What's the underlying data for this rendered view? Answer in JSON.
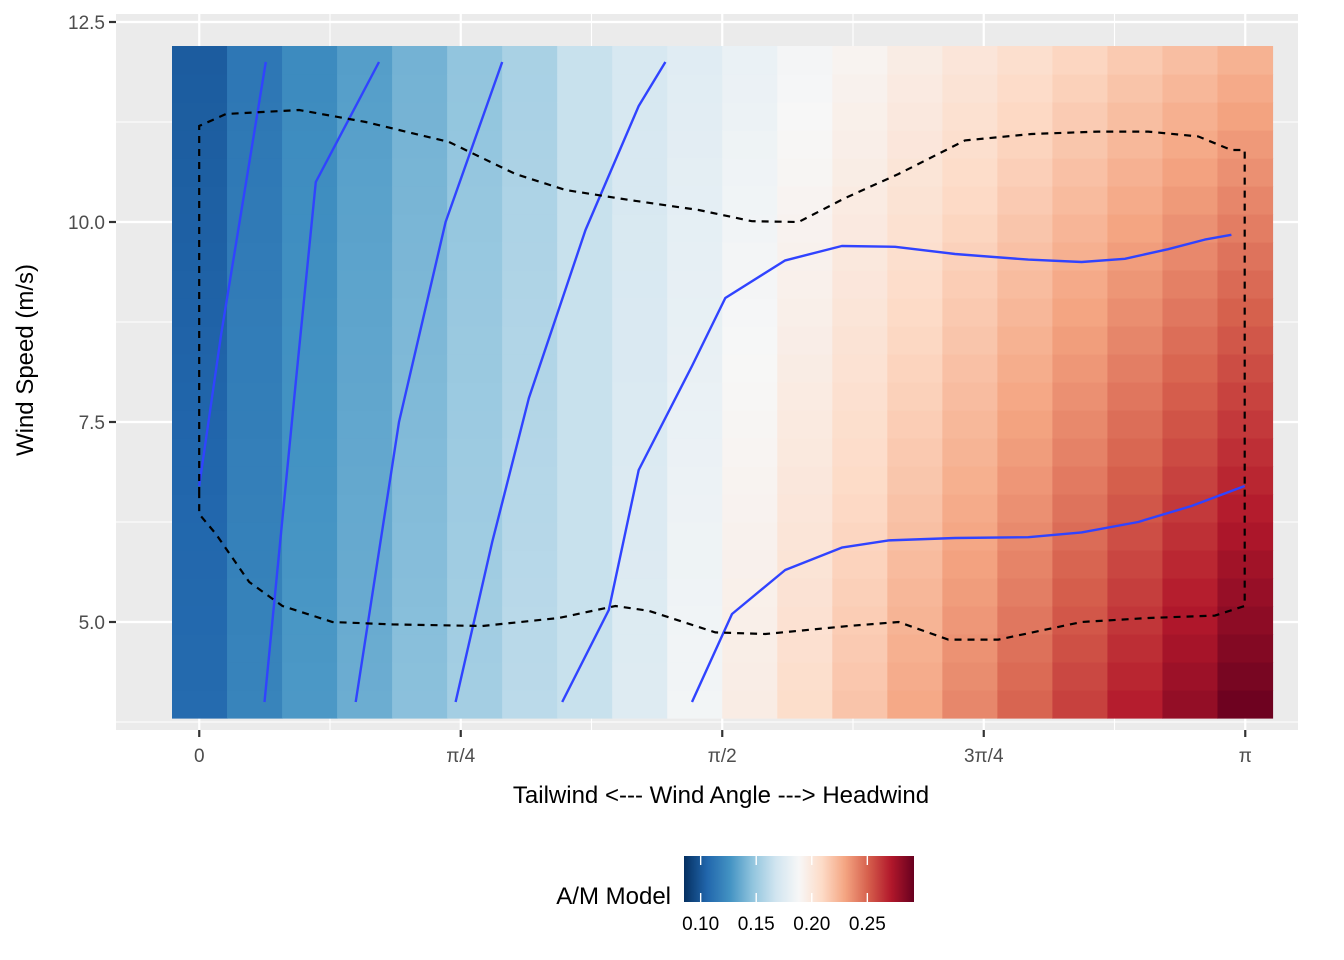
{
  "chart_data": {
    "type": "heatmap",
    "xlabel": "Tailwind  <---  Wind Angle  --->  Headwind",
    "ylabel": "Wind Speed (m/s)",
    "x_ticks": [
      {
        "value": 0,
        "label": "0"
      },
      {
        "value": 0.7854,
        "label": "π/4"
      },
      {
        "value": 1.5708,
        "label": "π/2"
      },
      {
        "value": 2.3562,
        "label": "3π/4"
      },
      {
        "value": 3.1416,
        "label": "π"
      }
    ],
    "y_ticks": [
      {
        "value": 5.0,
        "label": "5.0"
      },
      {
        "value": 7.5,
        "label": "7.5"
      },
      {
        "value": 10.0,
        "label": "10.0"
      },
      {
        "value": 12.5,
        "label": "12.5"
      }
    ],
    "xlim": [
      -0.25,
      3.3
    ],
    "ylim": [
      3.65,
      12.6
    ],
    "grid": true,
    "heatmap": {
      "x_range": [
        -0.0818,
        3.2234
      ],
      "y_range": [
        3.8,
        12.2
      ],
      "columns": 20,
      "rows": 24,
      "value_range_in_columns": [
        0.105,
        0.245
      ],
      "description": "fill value increases with wind angle and, for angles above about pi/2, increases as wind speed decreases"
    },
    "contours": [
      {
        "level": "low-1",
        "points": [
          [
            0.0,
            6.7
          ],
          [
            0.066,
            8.6
          ],
          [
            0.2,
            12.0
          ]
        ]
      },
      {
        "level": "low-2",
        "points": [
          [
            0.196,
            4.0
          ],
          [
            0.29,
            8.0
          ],
          [
            0.35,
            10.5
          ],
          [
            0.54,
            12.0
          ]
        ]
      },
      {
        "level": "low-3",
        "points": [
          [
            0.47,
            4.0
          ],
          [
            0.6,
            7.5
          ],
          [
            0.74,
            10.0
          ],
          [
            0.91,
            12.0
          ]
        ]
      },
      {
        "level": "low-4",
        "points": [
          [
            0.77,
            4.0
          ],
          [
            0.88,
            6.0
          ],
          [
            0.99,
            7.8
          ],
          [
            1.16,
            9.9
          ],
          [
            1.32,
            11.45
          ],
          [
            1.4,
            12.0
          ]
        ]
      },
      {
        "level": "high-1",
        "points": [
          [
            1.09,
            4.0
          ],
          [
            1.23,
            5.15
          ],
          [
            1.32,
            6.9
          ],
          [
            1.48,
            8.2
          ],
          [
            1.58,
            9.05
          ],
          [
            1.76,
            9.52
          ],
          [
            1.93,
            9.7
          ],
          [
            2.09,
            9.69
          ],
          [
            2.27,
            9.6
          ],
          [
            2.49,
            9.53
          ],
          [
            2.65,
            9.5
          ],
          [
            2.78,
            9.54
          ],
          [
            2.91,
            9.66
          ],
          [
            3.02,
            9.78
          ],
          [
            3.1,
            9.84
          ]
        ]
      },
      {
        "level": "high-2",
        "points": [
          [
            1.48,
            4.0
          ],
          [
            1.6,
            5.1
          ],
          [
            1.76,
            5.65
          ],
          [
            1.93,
            5.93
          ],
          [
            2.07,
            6.02
          ],
          [
            2.27,
            6.05
          ],
          [
            2.49,
            6.06
          ],
          [
            2.65,
            6.12
          ],
          [
            2.82,
            6.25
          ],
          [
            2.98,
            6.45
          ],
          [
            3.14,
            6.7
          ]
        ]
      }
    ],
    "outline_dashed": [
      [
        0.0,
        6.6
      ],
      [
        0.0,
        11.2
      ],
      [
        0.08,
        11.35
      ],
      [
        0.3,
        11.4
      ],
      [
        0.5,
        11.25
      ],
      [
        0.75,
        11.0
      ],
      [
        0.95,
        10.6
      ],
      [
        1.1,
        10.4
      ],
      [
        1.3,
        10.27
      ],
      [
        1.5,
        10.15
      ],
      [
        1.66,
        10.01
      ],
      [
        1.8,
        10.0
      ],
      [
        1.94,
        10.3
      ],
      [
        2.1,
        10.6
      ],
      [
        2.3,
        11.02
      ],
      [
        2.5,
        11.1
      ],
      [
        2.7,
        11.13
      ],
      [
        2.85,
        11.13
      ],
      [
        3.0,
        11.07
      ],
      [
        3.1,
        10.9
      ],
      [
        3.14,
        10.9
      ],
      [
        3.14,
        5.2
      ],
      [
        3.05,
        5.08
      ],
      [
        2.85,
        5.05
      ],
      [
        2.65,
        5.0
      ],
      [
        2.4,
        4.78
      ],
      [
        2.25,
        4.78
      ],
      [
        2.1,
        5.0
      ],
      [
        1.95,
        4.95
      ],
      [
        1.7,
        4.85
      ],
      [
        1.55,
        4.87
      ],
      [
        1.35,
        5.14
      ],
      [
        1.25,
        5.2
      ],
      [
        1.08,
        5.05
      ],
      [
        0.85,
        4.95
      ],
      [
        0.58,
        4.97
      ],
      [
        0.4,
        5.0
      ],
      [
        0.25,
        5.2
      ],
      [
        0.15,
        5.5
      ],
      [
        0.05,
        6.1
      ],
      [
        0.0,
        6.35
      ],
      [
        0.0,
        6.6
      ]
    ],
    "legend": {
      "title": "A/M Model",
      "position": "bottom",
      "domain": [
        0.085,
        0.292
      ],
      "labels": [
        {
          "value": 0.1,
          "label": "0.10"
        },
        {
          "value": 0.15,
          "label": "0.15"
        },
        {
          "value": 0.2,
          "label": "0.20"
        },
        {
          "value": 0.25,
          "label": "0.25"
        }
      ]
    },
    "colors": {
      "panel_background": "#ebebeb",
      "grid": "#ffffff",
      "contour": "#3043ff",
      "outline": "#000000",
      "palette": [
        "#053061",
        "#2166ac",
        "#4393c3",
        "#92c5de",
        "#d1e5f0",
        "#f7f7f7",
        "#fddbc7",
        "#f4a582",
        "#d6604d",
        "#b2182b",
        "#67001f"
      ]
    }
  }
}
